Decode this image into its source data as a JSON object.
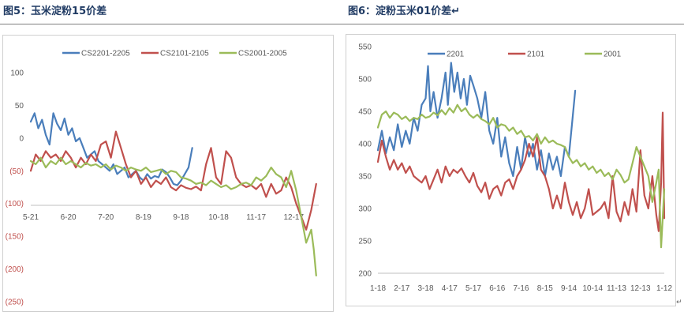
{
  "titles": {
    "fig5": "图5：玉米淀粉15价差",
    "fig6": "图6：淀粉玉米01价差↵"
  },
  "corner_mark": "↵",
  "chart_data": [
    {
      "type": "line",
      "title": "",
      "xlabel": "",
      "ylabel": "",
      "ylim": [
        -250,
        100
      ],
      "y_ticks": [
        100,
        50,
        0,
        -50,
        -100,
        -150,
        -200,
        -250
      ],
      "y_tick_labels": [
        "100",
        "50",
        "0",
        "(50)",
        "(100)",
        "(150)",
        "(200)",
        "(250)"
      ],
      "negative_label_color": "#c0504d",
      "positive_label_color": "#595959",
      "x_tick_labels": [
        "5-21",
        "6-20",
        "7-20",
        "8-19",
        "9-18",
        "10-18",
        "11-17",
        "12-17"
      ],
      "x_range": [
        0,
        230
      ],
      "x_tick_positions": [
        0,
        30,
        60,
        90,
        120,
        150,
        180,
        210
      ],
      "grid": false,
      "legend_position": "top",
      "series": [
        {
          "name": "CS2201-2205",
          "color": "#4a7ebb",
          "x": [
            0,
            3,
            6,
            9,
            12,
            15,
            18,
            21,
            24,
            27,
            30,
            33,
            36,
            39,
            42,
            45,
            48,
            51,
            54,
            57,
            60,
            63,
            66,
            69,
            72,
            75,
            78,
            81,
            84,
            87,
            90,
            93,
            96,
            99,
            102,
            105,
            108,
            111,
            114,
            117,
            120,
            123,
            126,
            129
          ],
          "y": [
            25,
            38,
            15,
            28,
            5,
            -10,
            38,
            22,
            12,
            30,
            5,
            15,
            -5,
            0,
            -15,
            -30,
            -25,
            -20,
            -35,
            -40,
            -45,
            -50,
            -40,
            -55,
            -50,
            -45,
            -60,
            -55,
            -50,
            -60,
            -65,
            -55,
            -62,
            -58,
            -60,
            -48,
            -52,
            -60,
            -70,
            -72,
            -65,
            -55,
            -45,
            -15
          ]
        },
        {
          "name": "CS2101-2105",
          "color": "#c0504d",
          "x": [
            0,
            4,
            8,
            12,
            16,
            20,
            24,
            28,
            32,
            36,
            40,
            44,
            48,
            52,
            56,
            60,
            64,
            68,
            72,
            76,
            80,
            84,
            88,
            92,
            96,
            100,
            104,
            108,
            112,
            116,
            120,
            124,
            128,
            132,
            136,
            140,
            144,
            148,
            152,
            156,
            160,
            164,
            168,
            172,
            176,
            180,
            184,
            188,
            192,
            196,
            200,
            204,
            208,
            212,
            216,
            220,
            224,
            228
          ],
          "y": [
            -50,
            -25,
            -35,
            -20,
            -30,
            -25,
            -35,
            -20,
            -30,
            -45,
            -30,
            -40,
            -25,
            -35,
            -10,
            -5,
            -30,
            10,
            -15,
            -40,
            -60,
            -50,
            -70,
            -60,
            -75,
            -65,
            -70,
            -60,
            -75,
            -80,
            -72,
            -76,
            -78,
            -74,
            -80,
            -40,
            -15,
            -60,
            -70,
            -20,
            -30,
            -60,
            -70,
            -75,
            -72,
            -78,
            -70,
            -90,
            -70,
            -85,
            -80,
            -60,
            -75,
            -100,
            -120,
            -140,
            -110,
            -70
          ]
        },
        {
          "name": "CS2001-2005",
          "color": "#9bbb59",
          "x": [
            0,
            4,
            8,
            12,
            16,
            20,
            24,
            28,
            32,
            36,
            40,
            44,
            48,
            52,
            56,
            60,
            64,
            68,
            72,
            76,
            80,
            84,
            88,
            92,
            96,
            100,
            104,
            108,
            112,
            116,
            120,
            124,
            128,
            132,
            136,
            140,
            144,
            148,
            152,
            156,
            160,
            164,
            168,
            172,
            176,
            180,
            184,
            188,
            192,
            196,
            200,
            204,
            208,
            212,
            216,
            220,
            224,
            226,
            228
          ],
          "y": [
            -35,
            -40,
            -30,
            -45,
            -35,
            -40,
            -30,
            -40,
            -35,
            -40,
            -45,
            -38,
            -42,
            -40,
            -45,
            -40,
            -48,
            -42,
            -45,
            -50,
            -45,
            -48,
            -50,
            -45,
            -52,
            -50,
            -48,
            -55,
            -50,
            -52,
            -60,
            -62,
            -65,
            -70,
            -68,
            -72,
            -65,
            -70,
            -75,
            -72,
            -78,
            -75,
            -70,
            -68,
            -72,
            -60,
            -65,
            -58,
            -45,
            -55,
            -60,
            -75,
            -50,
            -80,
            -120,
            -160,
            -140,
            -170,
            -210
          ]
        }
      ]
    },
    {
      "type": "line",
      "title": "",
      "xlabel": "",
      "ylabel": "",
      "ylim": [
        200,
        550
      ],
      "y_ticks": [
        550,
        500,
        450,
        400,
        350,
        300,
        250,
        200
      ],
      "y_tick_labels": [
        "550",
        "500",
        "450",
        "400",
        "350",
        "300",
        "250",
        "200"
      ],
      "x_tick_labels": [
        "1-18",
        "2-17",
        "3-18",
        "4-17",
        "5-17",
        "6-16",
        "7-16",
        "8-15",
        "9-14",
        "10-14",
        "11-13",
        "12-13",
        "1-12"
      ],
      "x_range": [
        0,
        360
      ],
      "x_tick_positions": [
        0,
        30,
        60,
        90,
        120,
        150,
        180,
        210,
        240,
        270,
        300,
        330,
        360
      ],
      "grid": false,
      "legend_position": "top",
      "series": [
        {
          "name": "2201",
          "color": "#4a7ebb",
          "x": [
            0,
            5,
            10,
            15,
            20,
            25,
            30,
            35,
            40,
            45,
            50,
            55,
            60,
            63,
            66,
            70,
            75,
            80,
            85,
            88,
            92,
            96,
            100,
            104,
            108,
            112,
            116,
            120,
            125,
            130,
            135,
            140,
            145,
            150,
            155,
            160,
            165,
            170,
            175,
            180,
            185,
            190,
            195,
            200,
            205,
            210,
            215,
            220,
            225,
            230,
            235,
            240,
            244,
            248
          ],
          "y": [
            390,
            420,
            385,
            410,
            390,
            430,
            395,
            420,
            400,
            440,
            420,
            460,
            470,
            520,
            450,
            480,
            440,
            470,
            510,
            460,
            525,
            480,
            510,
            470,
            500,
            460,
            505,
            490,
            470,
            440,
            480,
            420,
            400,
            440,
            380,
            410,
            370,
            350,
            395,
            360,
            410,
            380,
            400,
            360,
            390,
            350,
            385,
            360,
            380,
            350,
            395,
            380,
            430,
            482
          ]
        },
        {
          "name": "2101",
          "color": "#c0504d",
          "x": [
            0,
            5,
            10,
            15,
            20,
            25,
            30,
            35,
            40,
            45,
            50,
            55,
            60,
            65,
            70,
            75,
            80,
            85,
            90,
            95,
            100,
            105,
            110,
            115,
            120,
            125,
            130,
            135,
            140,
            145,
            150,
            155,
            160,
            165,
            170,
            175,
            180,
            185,
            190,
            195,
            200,
            205,
            210,
            215,
            220,
            225,
            230,
            235,
            240,
            245,
            250,
            255,
            260,
            265,
            270,
            275,
            280,
            285,
            290,
            295,
            300,
            305,
            310,
            315,
            320,
            325,
            330,
            335,
            340,
            345,
            350,
            353,
            356,
            358,
            360
          ],
          "y": [
            372,
            405,
            380,
            360,
            375,
            360,
            370,
            355,
            365,
            350,
            345,
            340,
            350,
            330,
            345,
            360,
            340,
            365,
            350,
            360,
            355,
            362,
            350,
            340,
            355,
            335,
            325,
            340,
            315,
            330,
            335,
            320,
            340,
            345,
            330,
            350,
            360,
            375,
            400,
            380,
            410,
            360,
            350,
            330,
            300,
            320,
            300,
            340,
            310,
            290,
            310,
            285,
            300,
            330,
            290,
            295,
            300,
            310,
            285,
            350,
            295,
            280,
            310,
            290,
            330,
            295,
            390,
            320,
            300,
            350,
            290,
            265,
            340,
            448,
            285
          ]
        },
        {
          "name": "2001",
          "color": "#9bbb59",
          "x": [
            0,
            5,
            10,
            15,
            20,
            25,
            30,
            35,
            40,
            45,
            50,
            55,
            60,
            65,
            70,
            75,
            80,
            85,
            90,
            95,
            100,
            105,
            110,
            115,
            120,
            125,
            130,
            135,
            140,
            145,
            150,
            155,
            160,
            165,
            170,
            175,
            180,
            185,
            190,
            195,
            200,
            205,
            210,
            215,
            220,
            225,
            230,
            235,
            240,
            245,
            250,
            255,
            260,
            265,
            270,
            275,
            280,
            285,
            290,
            295,
            300,
            305,
            310,
            315,
            320,
            325,
            330,
            335,
            340,
            345,
            350,
            353,
            356,
            360
          ],
          "y": [
            425,
            445,
            450,
            440,
            448,
            445,
            438,
            442,
            435,
            440,
            438,
            445,
            440,
            442,
            448,
            444,
            452,
            445,
            455,
            448,
            460,
            450,
            455,
            445,
            440,
            445,
            438,
            435,
            430,
            440,
            425,
            430,
            428,
            420,
            425,
            415,
            420,
            410,
            412,
            405,
            415,
            400,
            410,
            402,
            405,
            400,
            398,
            395,
            380,
            370,
            375,
            365,
            370,
            360,
            365,
            355,
            360,
            350,
            355,
            345,
            360,
            352,
            340,
            345,
            370,
            395,
            380,
            365,
            350,
            310,
            340,
            360,
            240,
            330
          ]
        }
      ]
    }
  ]
}
